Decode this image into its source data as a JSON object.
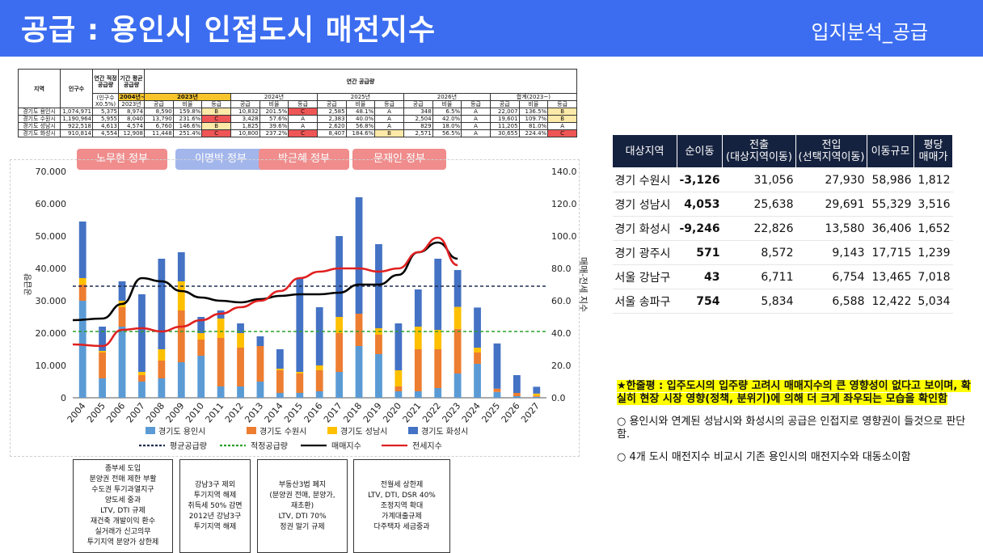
{
  "header": {
    "title": "공급 : 용인시 인접도시 매전지수",
    "subtitle": "입지분석_공급"
  },
  "supply_table": {
    "h_region": "지역",
    "h_pop": "인구수",
    "h_proper": "연간 적정 공급량",
    "h_avg": "기간 평균 공급량",
    "h_annual": "연간 공급량",
    "sub_proper": "(인구수 X0.5%)",
    "sub_avg_label": "2004년~",
    "sub_avg_year": "2023년",
    "years": [
      "2023년",
      "2024년",
      "2025년",
      "2026년",
      "합계(2023~)"
    ],
    "col_labels": [
      "공급",
      "비율",
      "등급"
    ],
    "rows": [
      {
        "region": "경기도 용인시",
        "pop": "1,074,971",
        "proper": "5,375",
        "avg": "8,974",
        "vals": [
          "8,590",
          "159.8%",
          "B",
          "10,832",
          "201.5%",
          "C",
          "2,585",
          "48.1%",
          "A",
          "348",
          "6.5%",
          "A",
          "22,007",
          "136.5%",
          "B"
        ],
        "grades": [
          "y",
          "",
          "r",
          "",
          "",
          "",
          "y"
        ]
      },
      {
        "region": "경기도 수원시",
        "pop": "1,190,964",
        "proper": "5,955",
        "avg": "8,040",
        "vals": [
          "13,790",
          "231.6%",
          "C",
          "3,428",
          "57.6%",
          "A",
          "2,383",
          "40.0%",
          "A",
          "2,504",
          "42.0%",
          "A",
          "19,601",
          "109.7%",
          "B"
        ]
      },
      {
        "region": "경기도 성남시",
        "pop": "922,518",
        "proper": "4,613",
        "avg": "4,574",
        "vals": [
          "6,760",
          "146.6%",
          "B",
          "1,825",
          "39.6%",
          "A",
          "2,620",
          "56.8%",
          "A",
          "829",
          "18.0%",
          "A",
          "11,205",
          "81.0%",
          "A"
        ]
      },
      {
        "region": "경기도 화성시",
        "pop": "910,814",
        "proper": "4,554",
        "avg": "12,908",
        "vals": [
          "11,448",
          "251.4%",
          "C",
          "10,800",
          "237.2%",
          "C",
          "8,407",
          "184.6%",
          "B",
          "2,571",
          "56.5%",
          "A",
          "30,655",
          "224.4%",
          "C"
        ]
      }
    ]
  },
  "policy_tags": [
    "노무현 정부",
    "이명박 정부",
    "박근혜 정부",
    "문재인 정부"
  ],
  "policy_colors": [
    "#f08c8c",
    "#a3b6ec",
    "#f08c8c",
    "#f08c8c"
  ],
  "policy_boxes": [
    [
      "종부세 도입",
      "분양권 전매 제한 부활",
      "수도권 투기과열지구",
      "양도세 중과",
      "LTV, DTI 규제",
      "재건축 개발이익 환수",
      "실거래가 신고의무",
      "투기지역 분양가 상한제"
    ],
    [
      "강남3구 제외",
      "투기지역 해제",
      "취득세 50% 감면",
      "2012년 강남3구",
      "투기지역 해제"
    ],
    [
      "부동산3법 폐지",
      "(분양권 전매, 분양가,",
      "재초환)",
      "LTV, DTI 70%",
      "정권 말기 규제"
    ],
    [
      "전월세 상한제",
      "LTV, DTI, DSR 40%",
      "조정지역 확대",
      "가계대출규제",
      "다주택자 세금중과"
    ]
  ],
  "chart_data": {
    "type": "bar",
    "categories": [
      "2004",
      "2005",
      "2006",
      "2007",
      "2008",
      "2009",
      "2010",
      "2011",
      "2012",
      "2013",
      "2014",
      "2015",
      "2016",
      "2017",
      "2018",
      "2019",
      "2020",
      "2021",
      "2022",
      "2023",
      "2024",
      "2025",
      "2026",
      "2027"
    ],
    "stacked": true,
    "series": [
      {
        "name": "경기도 용인시",
        "color": "#5b9bd5",
        "values": [
          30000,
          6000,
          22000,
          5000,
          6000,
          11000,
          13000,
          3500,
          3500,
          5000,
          1500,
          1500,
          2000,
          8000,
          16000,
          13500,
          2000,
          2000,
          3000,
          7500,
          10500,
          1800,
          500,
          300
        ]
      },
      {
        "name": "경기도 수원시",
        "color": "#ed7d31",
        "values": [
          5000,
          8000,
          6000,
          2000,
          5500,
          16000,
          5000,
          15000,
          12000,
          11000,
          7000,
          6000,
          6500,
          12000,
          10000,
          6000,
          1500,
          13000,
          12000,
          13800,
          3500,
          1000,
          1000,
          300
        ]
      },
      {
        "name": "경기도 성남시",
        "color": "#ffc000",
        "values": [
          2000,
          500,
          2000,
          1000,
          3500,
          9000,
          2000,
          6000,
          4500,
          0,
          500,
          500,
          1500,
          5000,
          0,
          2000,
          5000,
          7000,
          6000,
          6800,
          1500,
          0,
          0,
          700
        ]
      },
      {
        "name": "경기도 화성시",
        "color": "#4472c4",
        "values": [
          17500,
          7500,
          6000,
          24000,
          28000,
          9000,
          5000,
          2500,
          3000,
          3000,
          6000,
          29000,
          18000,
          25000,
          36000,
          26000,
          14500,
          11500,
          22000,
          11400,
          12400,
          14000,
          5500,
          2100
        ]
      }
    ],
    "lines_right_axis": [
      {
        "name": "매매지수",
        "color": "#000000",
        "x_start": "2004",
        "x_end": "2023",
        "values": [
          48,
          49,
          58,
          74,
          72,
          66,
          62,
          60,
          59,
          61,
          63,
          64,
          64,
          65,
          70,
          70,
          76,
          90,
          96,
          86
        ]
      },
      {
        "name": "전세지수",
        "color": "#e02020",
        "x_start": "2004",
        "x_end": "2023",
        "values": [
          33,
          32,
          42,
          43,
          41,
          44,
          48,
          52,
          56,
          60,
          66,
          74,
          78,
          80,
          80,
          78,
          80,
          90,
          99,
          82
        ]
      }
    ],
    "hlines": [
      {
        "name": "평균공급량",
        "value": 34500,
        "color": "#1f2d50",
        "style": "dashed"
      },
      {
        "name": "적정공급량",
        "value": 20500,
        "color": "#2ca02c",
        "style": "dashed"
      }
    ],
    "ylim": [
      0,
      70000
    ],
    "y2lim": [
      0,
      140
    ],
    "yticks": [
      "0",
      "10.000",
      "20.000",
      "30.000",
      "40.000",
      "50.000",
      "60.000",
      "70.000"
    ],
    "y2ticks": [
      "0.0",
      "20.0",
      "40.0",
      "60.0",
      "80.0",
      "100.0",
      "120.0",
      "140.0"
    ],
    "ylabel": "공급량",
    "y2label": "매매-전세 지수",
    "legend_position": "bottom"
  },
  "migration_table": {
    "headers": [
      "대상지역",
      "순이동",
      "전출\n(대상지역이동)",
      "전입\n(선택지역이동)",
      "이동규모",
      "평당\n매매가"
    ],
    "rows": [
      [
        "경기 수원시",
        "-3,126",
        "31,056",
        "27,930",
        "58,986",
        "1,812"
      ],
      [
        "경기 성남시",
        "4,053",
        "25,638",
        "29,691",
        "55,329",
        "3,516"
      ],
      [
        "경기 화성시",
        "-9,246",
        "22,826",
        "13,580",
        "36,406",
        "1,652"
      ],
      [
        "경기 광주시",
        "571",
        "8,572",
        "9,143",
        "17,715",
        "1,239"
      ],
      [
        "서울 강남구",
        "43",
        "6,711",
        "6,754",
        "13,465",
        "7,018"
      ],
      [
        "서울 송파구",
        "754",
        "5,834",
        "6,588",
        "12,422",
        "5,034"
      ]
    ]
  },
  "notes": {
    "highlight": "★한줄평 : 입주도시의 입주량 고려시 매매지수의 큰 영향성이 없다고 보이며, 확실히 현장 시장 영향(정책, 분위기)에 의해 더 크게 좌우되는 모습을 확인함",
    "items": [
      "○ 용인시와 연계된 성남시와 화성시의 공급은 인접지로 영향권이 들것으로 판단함.",
      "○ 4개 도시 매전지수 비교시 기존 용인시의 매전지수와 대동소이함"
    ]
  }
}
